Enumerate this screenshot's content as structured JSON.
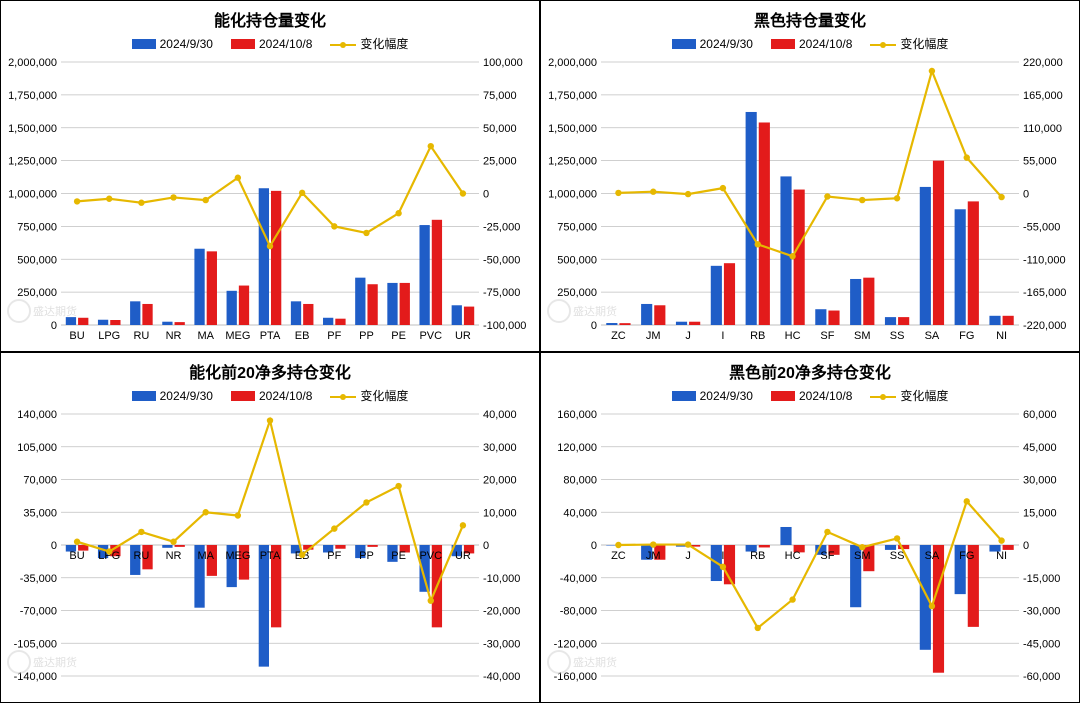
{
  "colors": {
    "series1": "#1f5dc7",
    "series2": "#e31b1b",
    "line": "#e6b800",
    "gridline": "#bfbfbf",
    "axis": "#000000",
    "bg": "#ffffff"
  },
  "legend_labels": {
    "s1": "2024/9/30",
    "s2": "2024/10/8",
    "line": "变化幅度"
  },
  "watermark_text": "盛达期货",
  "panels": [
    {
      "title": "能化持仓量变化",
      "categories": [
        "BU",
        "LPG",
        "RU",
        "NR",
        "MA",
        "MEG",
        "PTA",
        "EB",
        "PF",
        "PP",
        "PE",
        "PVC",
        "UR"
      ],
      "left_axis": {
        "min": 0,
        "max": 2000000,
        "step": 250000
      },
      "right_axis": {
        "min": -100000,
        "max": 100000,
        "step": 25000
      },
      "bar1": [
        60000,
        40000,
        180000,
        25000,
        580000,
        260000,
        1040000,
        180000,
        55000,
        360000,
        320000,
        760000,
        150000
      ],
      "bar2": [
        55000,
        38000,
        160000,
        22000,
        560000,
        300000,
        1020000,
        160000,
        48000,
        310000,
        320000,
        800000,
        140000
      ],
      "line": [
        -6000,
        -4000,
        -7000,
        -3000,
        -5000,
        12000,
        -40000,
        500,
        -25000,
        -30000,
        -15000,
        36000,
        0
      ],
      "bar_width": 0.32,
      "title_fontsize": 16,
      "label_fontsize": 11
    },
    {
      "title": "黑色持仓量变化",
      "categories": [
        "ZC",
        "JM",
        "J",
        "I",
        "RB",
        "HC",
        "SF",
        "SM",
        "SS",
        "SA",
        "FG",
        "NI"
      ],
      "left_axis": {
        "min": 0,
        "max": 2000000,
        "step": 250000
      },
      "right_axis": {
        "min": -220000,
        "max": 220000,
        "step": 55000
      },
      "bar1": [
        15000,
        160000,
        25000,
        450000,
        1620000,
        1130000,
        120000,
        350000,
        60000,
        1050000,
        880000,
        70000
      ],
      "bar2": [
        14000,
        150000,
        25000,
        470000,
        1540000,
        1030000,
        110000,
        360000,
        60000,
        1250000,
        940000,
        70000
      ],
      "line": [
        1000,
        3000,
        -1000,
        9000,
        -85000,
        -105000,
        -5000,
        -11000,
        -8000,
        205000,
        60000,
        -6000
      ],
      "bar_width": 0.32,
      "title_fontsize": 16,
      "label_fontsize": 11
    },
    {
      "title": "能化前20净多持仓变化",
      "categories": [
        "BU",
        "LPG",
        "RU",
        "NR",
        "MA",
        "MEG",
        "PTA",
        "EB",
        "PF",
        "PP",
        "PE",
        "PVC",
        "UR"
      ],
      "left_axis": {
        "min": -140000,
        "max": 140000,
        "step": 35000
      },
      "right_axis": {
        "min": -40000,
        "max": 40000,
        "step": 10000
      },
      "bar1": [
        -7000,
        -14000,
        -32000,
        -3000,
        -67000,
        -45000,
        -130000,
        -9000,
        -8000,
        -14000,
        -18000,
        -50000,
        -12000
      ],
      "bar2": [
        -6000,
        -12000,
        -26000,
        -2000,
        -33000,
        -37000,
        -88000,
        -5000,
        -4000,
        -2000,
        -8000,
        -88000,
        -9000
      ],
      "line": [
        1000,
        -2000,
        4000,
        1000,
        10000,
        9000,
        38000,
        -3000,
        5000,
        13000,
        18000,
        -17000,
        6000
      ],
      "bar_width": 0.32,
      "title_fontsize": 16,
      "label_fontsize": 11
    },
    {
      "title": "黑色前20净多持仓变化",
      "categories": [
        "ZC",
        "JM",
        "J",
        "I",
        "RB",
        "HC",
        "SF",
        "SM",
        "SS",
        "SA",
        "FG",
        "NI"
      ],
      "left_axis": {
        "min": -160000,
        "max": 160000,
        "step": 40000
      },
      "right_axis": {
        "min": -60000,
        "max": 60000,
        "step": 15000
      },
      "bar1": [
        -200,
        -18000,
        -2000,
        -44000,
        -8000,
        22000,
        -12000,
        -76000,
        -6000,
        -128000,
        -60000,
        -8000
      ],
      "bar2": [
        -200,
        -18000,
        -2000,
        -48000,
        -3000,
        -9000,
        -12000,
        -32000,
        -5000,
        -156000,
        -100000,
        -6000
      ],
      "line": [
        0,
        200,
        200,
        -10000,
        -38000,
        -25000,
        6000,
        -1000,
        3000,
        -28000,
        20000,
        2000
      ],
      "bar_width": 0.32,
      "title_fontsize": 16,
      "label_fontsize": 11
    }
  ]
}
